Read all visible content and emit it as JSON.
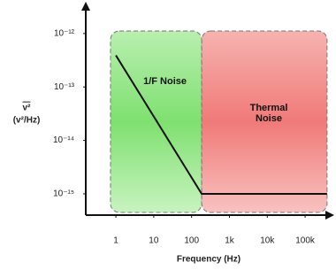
{
  "chart_data": {
    "type": "line",
    "xlabel": "Frequency (Hz)",
    "ylabel": "v²",
    "ylabel_units": "(v²/Hz)",
    "xscale": "log",
    "yscale": "log",
    "x": [
      1,
      185,
      380000
    ],
    "series": [
      {
        "color": "#111111",
        "values": [
          3.9e-13,
          1e-15,
          1e-15
        ]
      }
    ],
    "xlim": [
      0.16,
      500000
    ],
    "ylim": [
      4e-16,
      3.5e-12
    ],
    "xticks": [
      1,
      10,
      100,
      {
        "value": 1000,
        "label": "1k"
      },
      {
        "value": 10000,
        "label": "10k"
      },
      {
        "value": 100000,
        "label": "100k"
      }
    ],
    "yticks": [
      {
        "value": 1e-12,
        "label": "10⁻¹²"
      },
      {
        "value": 1e-13,
        "label": "10⁻¹³"
      },
      {
        "value": 1e-14,
        "label": "10⁻¹⁴"
      },
      {
        "value": 1e-15,
        "label": "10⁻¹⁵"
      }
    ],
    "regions": [
      {
        "label": "1/F Noise",
        "color": "#7ed87e",
        "xrange": [
          0.72,
          185
        ]
      },
      {
        "label": "Thermal Noise",
        "color": "#f08080",
        "xrange": [
          185,
          380000
        ]
      }
    ]
  }
}
